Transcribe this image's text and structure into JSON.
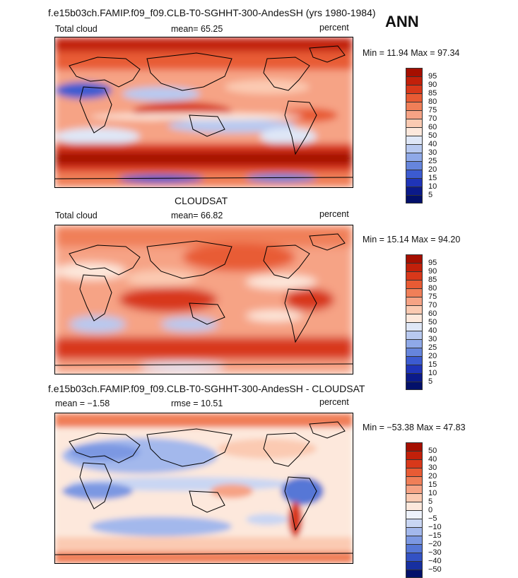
{
  "header": {
    "run_title": "f.e15b03ch.FAMIP.f09_f09.CLB-T0-SGHHT-300-AndesSH (yrs 1980-1984)",
    "season": "ANN"
  },
  "panels": [
    {
      "id": "model",
      "left_label": "Total cloud",
      "mean_text": "mean=  65.25",
      "units": "percent",
      "minmax": "Min =  11.94 Max =  97.34",
      "colorbar": {
        "levels": [
          "95",
          "90",
          "85",
          "80",
          "75",
          "70",
          "60",
          "50",
          "40",
          "30",
          "25",
          "20",
          "15",
          "10",
          "5"
        ],
        "colors": [
          "#a50f00",
          "#c2200a",
          "#d8381a",
          "#e85b34",
          "#f07f58",
          "#f6a385",
          "#fbcab2",
          "#fde8dc",
          "#dfe7f7",
          "#b8c9f0",
          "#8fa9e8",
          "#6685dc",
          "#3c5bd0",
          "#1f34b8",
          "#0b1a8a",
          "#03106a"
        ]
      }
    },
    {
      "id": "obs",
      "panel_title": "CLOUDSAT",
      "left_label": "Total cloud",
      "mean_text": "mean=  66.82",
      "units": "percent",
      "minmax": "Min =  15.14 Max =  94.20",
      "colorbar": {
        "levels": [
          "95",
          "90",
          "85",
          "80",
          "75",
          "70",
          "60",
          "50",
          "40",
          "30",
          "25",
          "20",
          "15",
          "10",
          "5"
        ],
        "colors": [
          "#a50f00",
          "#c2200a",
          "#d8381a",
          "#e85b34",
          "#f07f58",
          "#f6a385",
          "#fbcab2",
          "#fde8dc",
          "#dfe7f7",
          "#b8c9f0",
          "#8fa9e8",
          "#6685dc",
          "#3c5bd0",
          "#1f34b8",
          "#0b1a8a",
          "#03106a"
        ]
      }
    },
    {
      "id": "diff",
      "panel_title": "f.e15b03ch.FAMIP.f09_f09.CLB-T0-SGHHT-300-AndesSH - CLOUDSAT",
      "left_label": "mean =  −1.58",
      "mean_text": "rmse =  10.51",
      "units": "percent",
      "minmax": "Min = −53.38 Max =  47.83",
      "colorbar": {
        "levels": [
          "50",
          "40",
          "30",
          "20",
          "15",
          "10",
          "5",
          "0",
          "−5",
          "−10",
          "−15",
          "−20",
          "−30",
          "−40",
          "−50"
        ],
        "colors": [
          "#a50f00",
          "#c2200a",
          "#d8381a",
          "#e85b34",
          "#f07f58",
          "#f6a385",
          "#fbcab2",
          "#fde8dc",
          "#eef2fb",
          "#c9d6f3",
          "#a3b8ec",
          "#7c98e2",
          "#5677d6",
          "#3352c4",
          "#172fa0",
          "#03106a"
        ]
      }
    }
  ]
}
